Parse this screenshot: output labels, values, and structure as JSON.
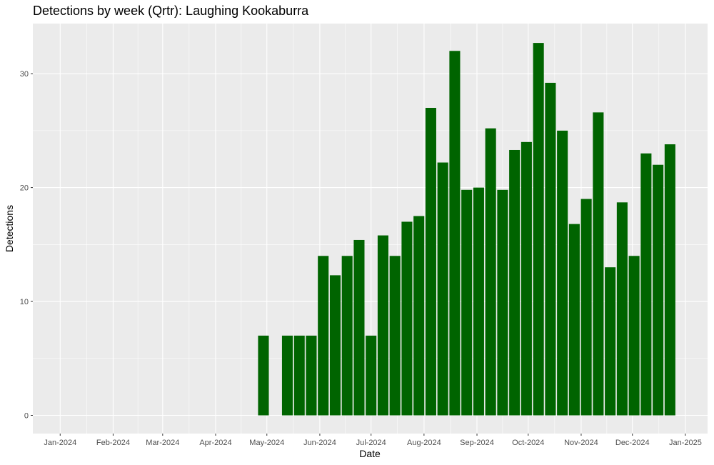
{
  "chart_data": {
    "type": "bar",
    "title": "Detections by week (Qrtr): Laughing Kookaburra",
    "xlabel": "Date",
    "ylabel": "Detections",
    "x_tick_labels": [
      "Jan-2024",
      "Feb-2024",
      "Mar-2024",
      "Apr-2024",
      "May-2024",
      "Jun-2024",
      "Jul-2024",
      "Aug-2024",
      "Sep-2024",
      "Oct-2024",
      "Nov-2024",
      "Dec-2024",
      "Jan-2025"
    ],
    "x_tick_dates": [
      "2024-01-01",
      "2024-02-01",
      "2024-03-01",
      "2024-04-01",
      "2024-05-01",
      "2024-06-01",
      "2024-07-01",
      "2024-08-01",
      "2024-09-01",
      "2024-10-01",
      "2024-11-01",
      "2024-12-01",
      "2025-01-01"
    ],
    "y_ticks": [
      0,
      10,
      20,
      30
    ],
    "ylim": [
      -1.6,
      34.4
    ],
    "xlim": [
      "2023-12-16",
      "2025-01-14"
    ],
    "grid": true,
    "bar_color": "#006400",
    "panel_background": "#EBEBEB",
    "x": [
      "2024-04-29",
      "2024-05-13",
      "2024-05-20",
      "2024-05-27",
      "2024-06-03",
      "2024-06-10",
      "2024-06-17",
      "2024-06-24",
      "2024-07-01",
      "2024-07-08",
      "2024-07-15",
      "2024-07-22",
      "2024-07-29",
      "2024-08-05",
      "2024-08-12",
      "2024-08-19",
      "2024-08-26",
      "2024-09-02",
      "2024-09-09",
      "2024-09-16",
      "2024-09-23",
      "2024-09-30",
      "2024-10-07",
      "2024-10-14",
      "2024-10-21",
      "2024-10-28",
      "2024-11-04",
      "2024-11-11",
      "2024-11-18",
      "2024-11-25",
      "2024-12-02",
      "2024-12-09",
      "2024-12-16",
      "2024-12-23"
    ],
    "values": [
      7,
      7,
      7,
      7,
      14,
      12.3,
      14,
      15.4,
      7,
      15.8,
      14,
      17,
      17.5,
      27,
      22.2,
      32,
      19.8,
      20,
      25.2,
      19.8,
      23.3,
      24,
      32.7,
      29.2,
      25,
      16.8,
      19,
      26.6,
      13,
      18.7,
      14,
      23,
      22,
      23.8
    ]
  }
}
